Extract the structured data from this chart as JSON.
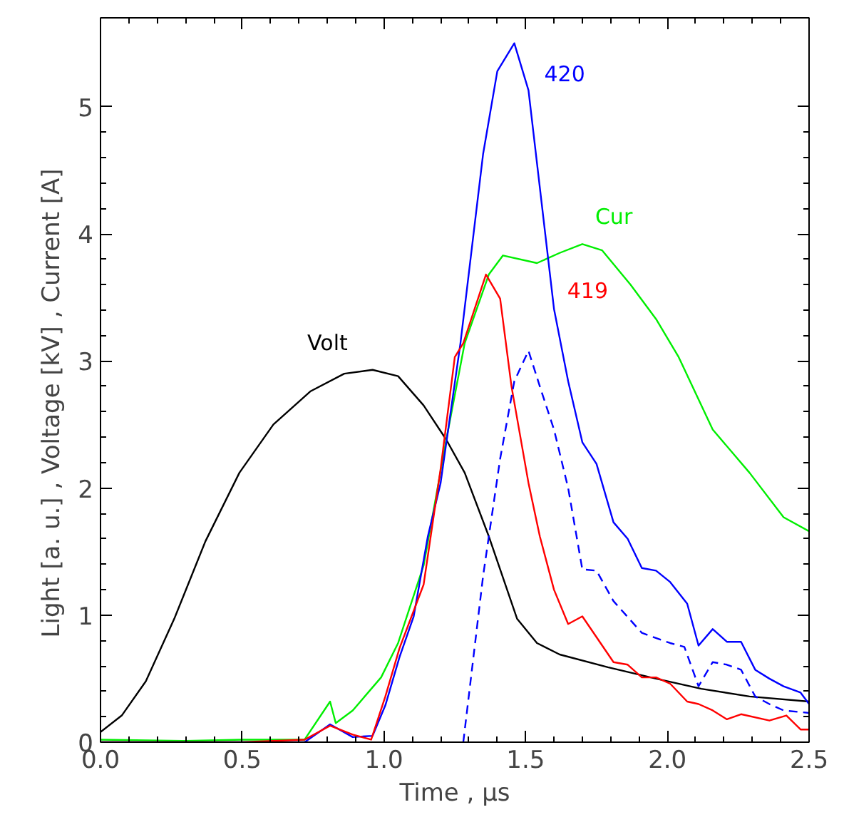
{
  "chart_data": {
    "type": "line",
    "xlabel": "Time , μs",
    "ylabel": "Light  [a. u.] ,   Voltage [kV] ,   Current  [A]",
    "xlim": [
      0,
      2.5
    ],
    "ylim": [
      0,
      5.7
    ],
    "xticks": [
      {
        "value": 0,
        "label": "0.0"
      },
      {
        "value": 0.5,
        "label": "0.5"
      },
      {
        "value": 1,
        "label": "1.0"
      },
      {
        "value": 1.5,
        "label": "1.5"
      },
      {
        "value": 2,
        "label": "2.0"
      },
      {
        "value": 2.5,
        "label": "2.5"
      }
    ],
    "yticks": [
      0,
      1,
      2,
      3,
      4,
      5
    ],
    "grid": false,
    "marker": "none",
    "series": [
      {
        "name": "Volt",
        "color": "#000000",
        "x": [
          0,
          0.075,
          0.16,
          0.26,
          0.37,
          0.49,
          0.61,
          0.74,
          0.86,
          0.96,
          1.05,
          1.14,
          1.22,
          1.285,
          1.37,
          1.47,
          1.54,
          1.62,
          1.79,
          1.96,
          2.12,
          2.29,
          2.5
        ],
        "values": [
          0.08,
          0.21,
          0.48,
          0.97,
          1.58,
          2.12,
          2.5,
          2.76,
          2.9,
          2.93,
          2.88,
          2.65,
          2.38,
          2.12,
          1.62,
          0.97,
          0.78,
          0.69,
          0.59,
          0.5,
          0.42,
          0.36,
          0.32
        ]
      },
      {
        "name": "Cur",
        "color": "#00ee00",
        "x": [
          0,
          0.3,
          0.5,
          0.72,
          0.81,
          0.83,
          0.89,
          0.99,
          1.05,
          1.14,
          1.22,
          1.285,
          1.37,
          1.42,
          1.54,
          1.62,
          1.7,
          1.77,
          1.87,
          1.96,
          2.04,
          2.16,
          2.29,
          2.41,
          2.5
        ],
        "values": [
          0.02,
          0.01,
          0.02,
          0.02,
          0.32,
          0.15,
          0.25,
          0.51,
          0.78,
          1.39,
          2.38,
          3.14,
          3.68,
          3.83,
          3.77,
          3.85,
          3.92,
          3.87,
          3.6,
          3.33,
          3.03,
          2.46,
          2.12,
          1.77,
          1.66
        ]
      },
      {
        "name": "420",
        "color": "#0000ff",
        "x": [
          0,
          0.5,
          0.72,
          0.81,
          0.89,
          0.96,
          1.005,
          1.055,
          1.105,
          1.155,
          1.2,
          1.27,
          1.35,
          1.4,
          1.46,
          1.51,
          1.6,
          1.65,
          1.7,
          1.75,
          1.81,
          1.86,
          1.91,
          1.96,
          2.01,
          2.07,
          2.11,
          2.16,
          2.21,
          2.26,
          2.31,
          2.36,
          2.41,
          2.47,
          2.5
        ],
        "values": [
          0,
          0,
          0,
          0.14,
          0.04,
          0.05,
          0.29,
          0.67,
          0.99,
          1.62,
          2.04,
          3.14,
          4.63,
          5.28,
          5.5,
          5.13,
          3.41,
          2.84,
          2.36,
          2.19,
          1.73,
          1.6,
          1.37,
          1.35,
          1.26,
          1.09,
          0.76,
          0.89,
          0.79,
          0.79,
          0.57,
          0.5,
          0.44,
          0.39,
          0.3
        ]
      },
      {
        "name": "419",
        "color": "#ff0000",
        "x": [
          0,
          0.5,
          0.72,
          0.81,
          0.89,
          0.955,
          1.005,
          1.055,
          1.14,
          1.2,
          1.25,
          1.28,
          1.36,
          1.41,
          1.45,
          1.51,
          1.55,
          1.6,
          1.65,
          1.7,
          1.81,
          1.86,
          1.91,
          1.96,
          2.01,
          2.07,
          2.11,
          2.16,
          2.21,
          2.26,
          2.36,
          2.42,
          2.47,
          2.5
        ],
        "values": [
          0,
          0,
          0.02,
          0.13,
          0.06,
          0.02,
          0.36,
          0.74,
          1.24,
          2.15,
          3.03,
          3.14,
          3.68,
          3.49,
          2.8,
          2.04,
          1.62,
          1.2,
          0.93,
          0.99,
          0.63,
          0.61,
          0.51,
          0.51,
          0.46,
          0.32,
          0.3,
          0.25,
          0.18,
          0.22,
          0.17,
          0.21,
          0.1,
          0.1
        ]
      },
      {
        "color": "#0000ff",
        "line_style": "dashed",
        "x": [
          1.28,
          1.35,
          1.41,
          1.46,
          1.51,
          1.55,
          1.6,
          1.65,
          1.7,
          1.75,
          1.81,
          1.91,
          2.01,
          2.06,
          2.11,
          2.16,
          2.21,
          2.26,
          2.31,
          2.36,
          2.41,
          2.5
        ],
        "values": [
          0,
          1.31,
          2.23,
          2.84,
          3.08,
          2.8,
          2.46,
          2.0,
          1.36,
          1.35,
          1.11,
          0.86,
          0.78,
          0.75,
          0.44,
          0.63,
          0.61,
          0.57,
          0.36,
          0.3,
          0.25,
          0.23
        ]
      }
    ]
  }
}
